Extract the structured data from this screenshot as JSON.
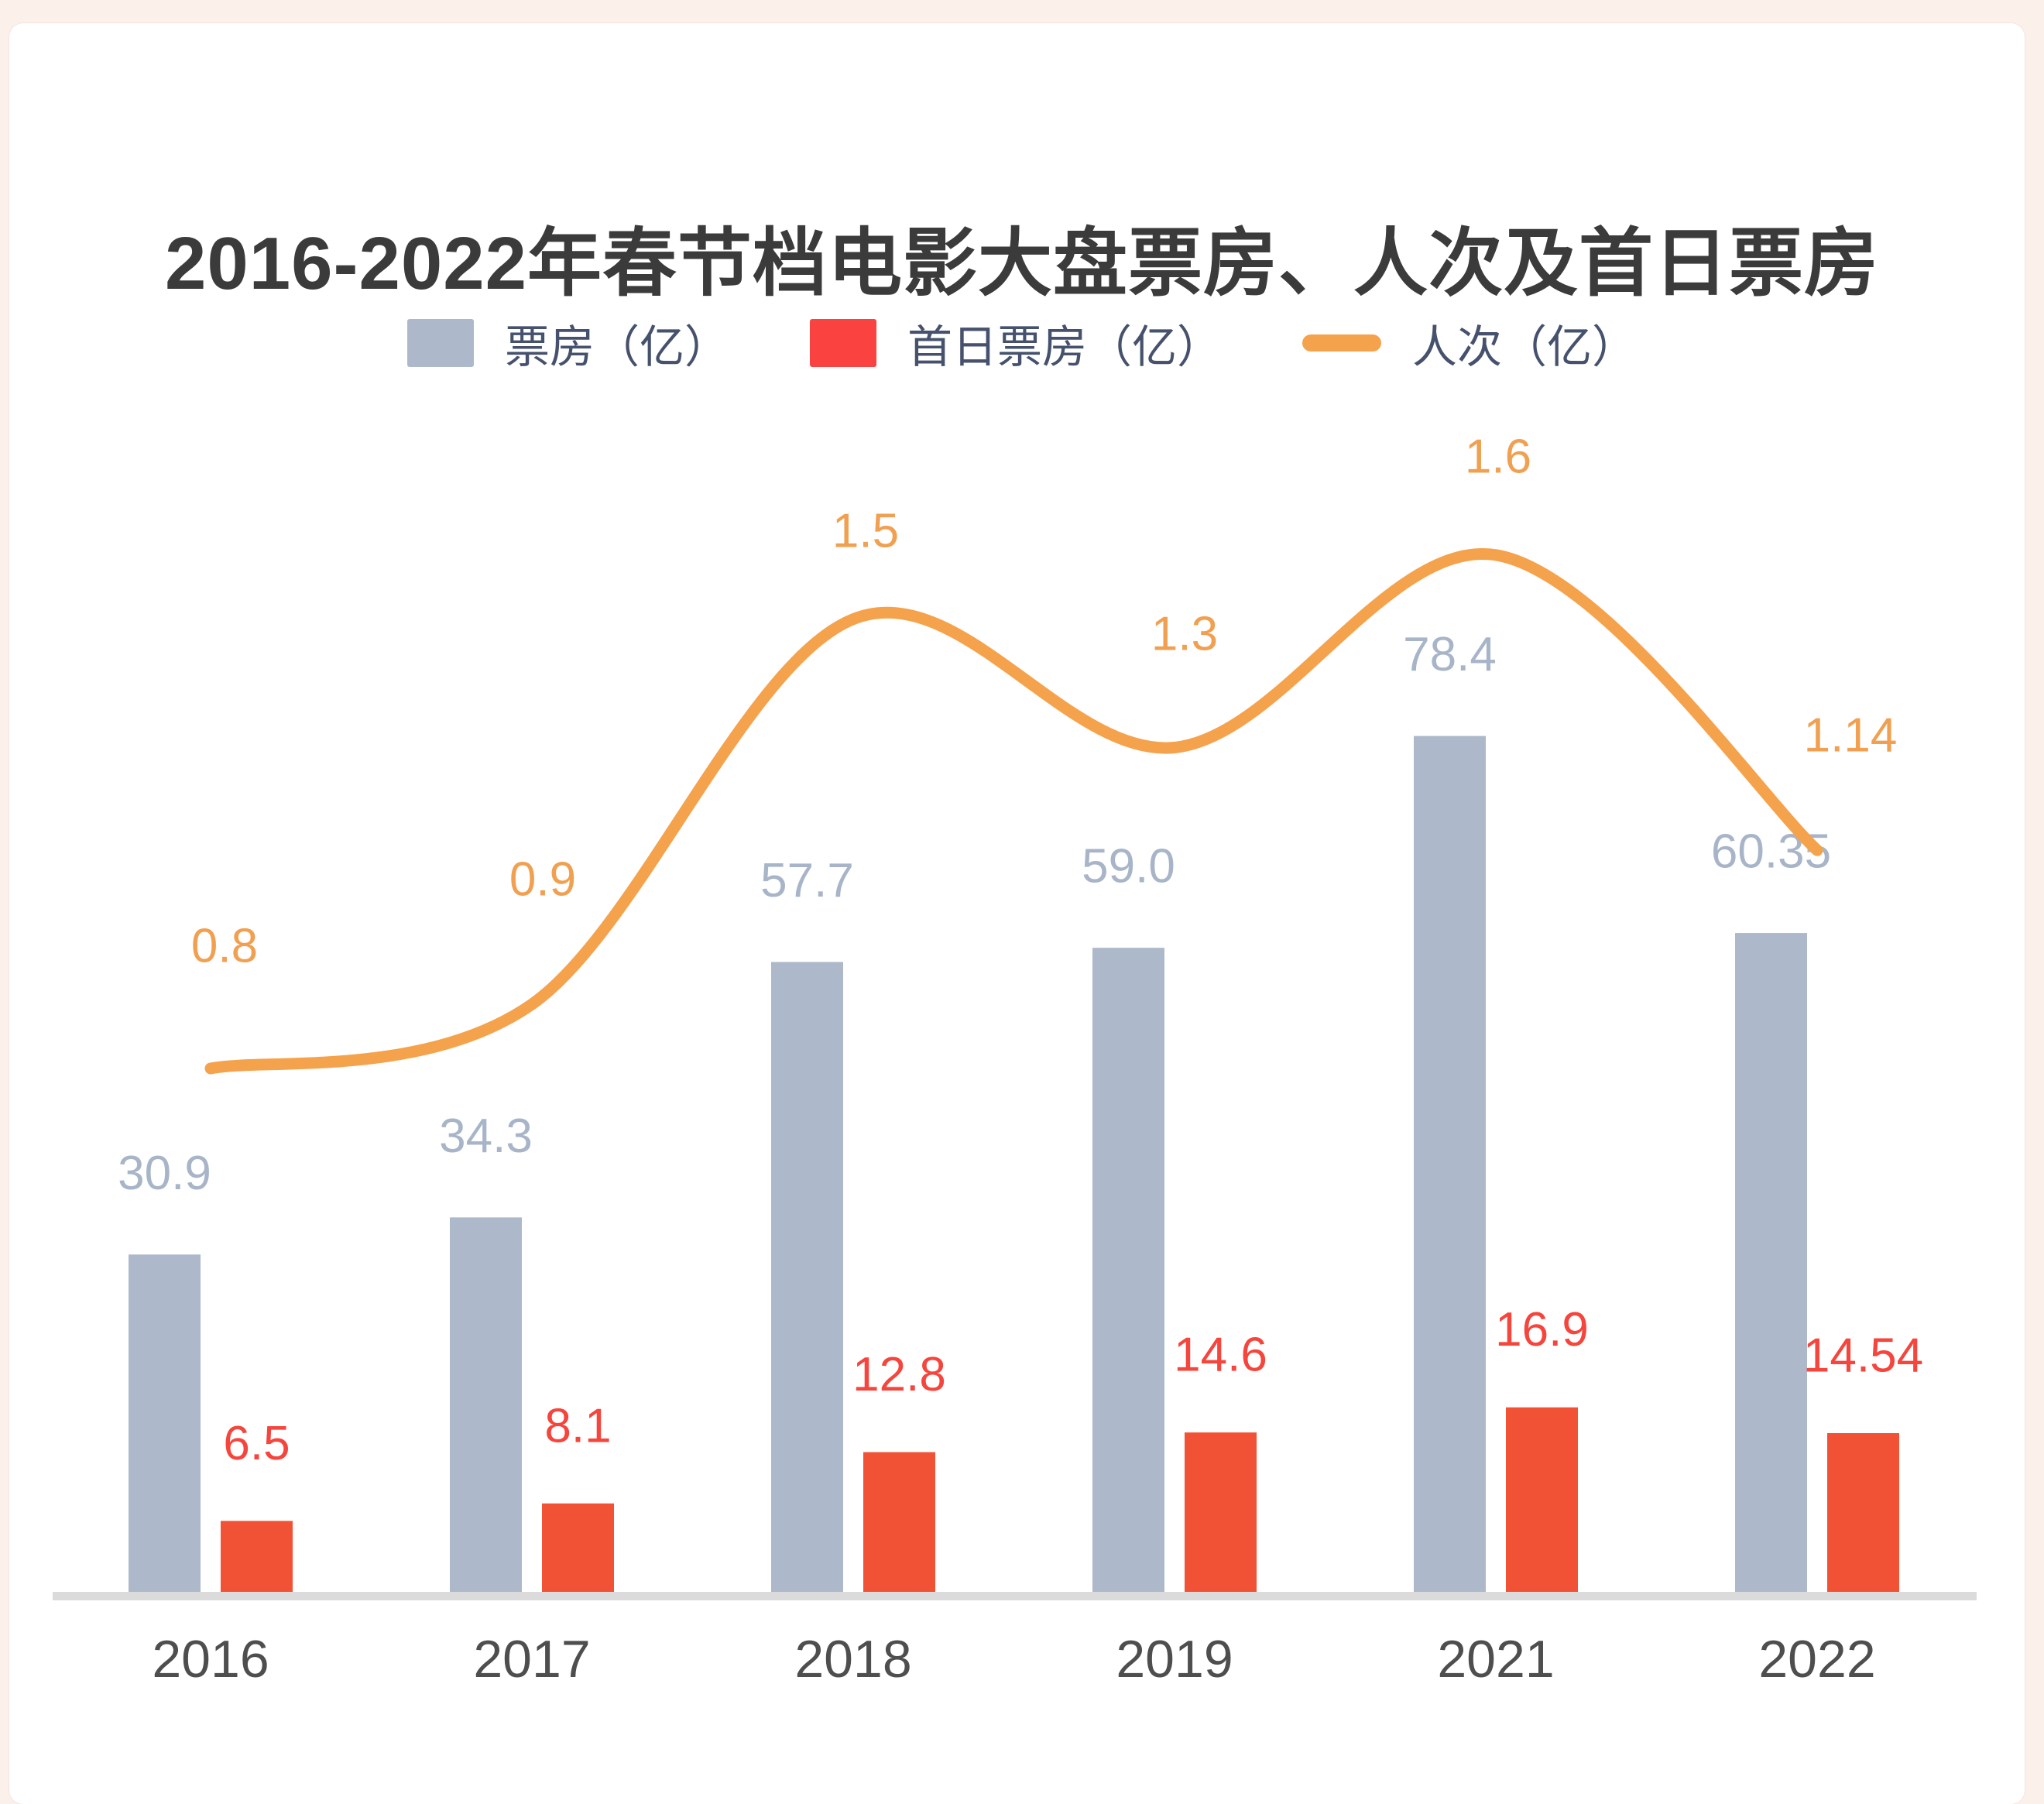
{
  "page": {
    "background_color": "#fcf0ea",
    "card_color": "#ffffff"
  },
  "chart_data": {
    "type": "combo-bar-line",
    "title": "2016-2022年春节档电影大盘票房、人次及首日票房",
    "categories": [
      "2016",
      "2017",
      "2018",
      "2019",
      "2021",
      "2022"
    ],
    "series": [
      {
        "name": "票房（亿）",
        "type": "bar",
        "color": "#adb9cb",
        "label_color": "#a8b5c8",
        "values": [
          30.9,
          34.3,
          57.7,
          59.0,
          78.4,
          60.35
        ],
        "labels": [
          "30.9",
          "34.3",
          "57.7",
          "59.0",
          "78.4",
          "60.35"
        ]
      },
      {
        "name": "首日票房（亿）",
        "type": "bar",
        "color": "#f15236",
        "label_color": "#f5453c",
        "legend_color": "#fa4341",
        "values": [
          6.5,
          8.1,
          12.8,
          14.6,
          16.9,
          14.54
        ],
        "labels": [
          "6.5",
          "8.1",
          "12.8",
          "14.6",
          "16.9",
          "14.54"
        ]
      },
      {
        "name": "人次（亿）",
        "type": "line",
        "color": "#f5a24c",
        "label_color": "#f0a050",
        "values": [
          0.8,
          0.9,
          1.5,
          1.3,
          1.6,
          1.14
        ],
        "labels": [
          "0.8",
          "0.9",
          "1.5",
          "1.3",
          "1.6",
          "1.14"
        ]
      }
    ],
    "legend_position": "top",
    "grid": false,
    "x_axis_line_color": "#dbdbdb",
    "x_axis_label_color": "#4e4e4e"
  }
}
